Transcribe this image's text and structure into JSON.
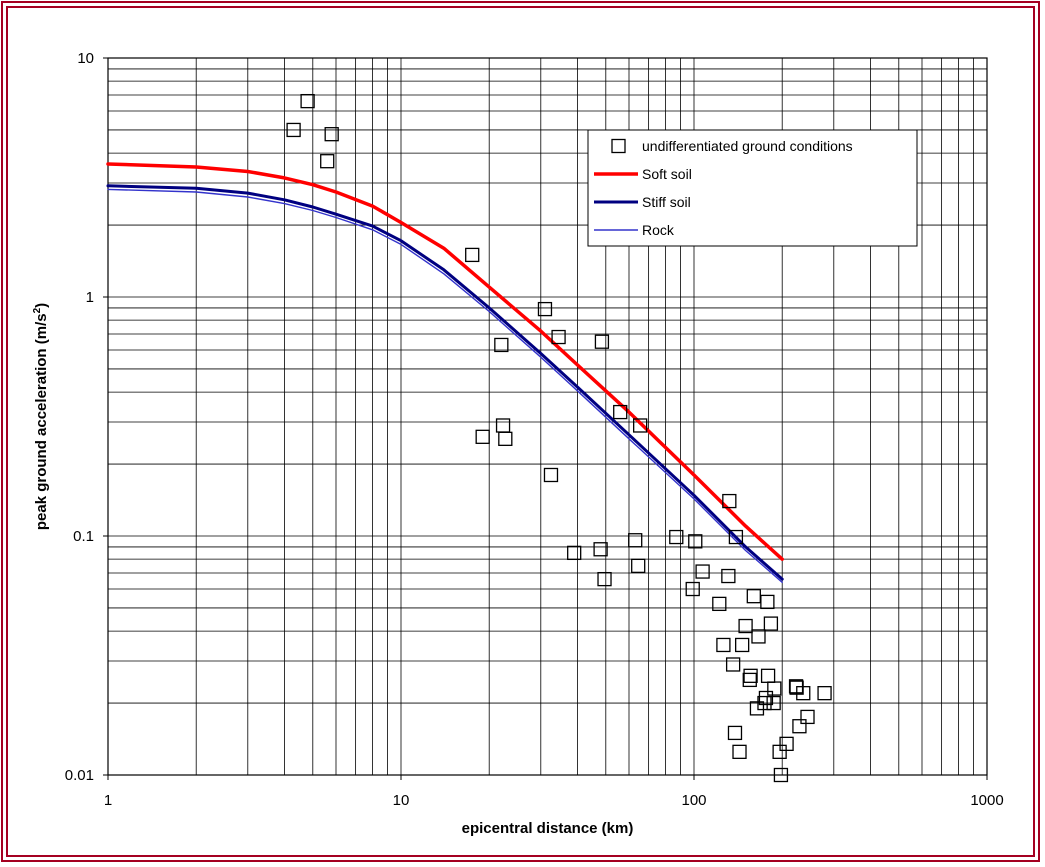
{
  "chart_data": {
    "type": "scatter",
    "title": "",
    "xlabel": "epicentral distance (km)",
    "ylabel_main": "peak ground acceleration (m/s",
    "ylabel_sup": "2",
    "ylabel_close": ")",
    "xscale": "log",
    "yscale": "log",
    "xlim": [
      1,
      1000
    ],
    "ylim": [
      0.01,
      10
    ],
    "x_tick_labels": [
      "1",
      "10",
      "100",
      "1000"
    ],
    "y_tick_labels": [
      "0.01",
      "0.1",
      "1",
      "10"
    ],
    "grid": true,
    "legend_position": "top-right",
    "series": [
      {
        "name": "undifferentiated ground conditions",
        "kind": "markers",
        "marker": "open-square",
        "color": "#000000",
        "points": [
          [
            4.3,
            5.0
          ],
          [
            4.8,
            6.6
          ],
          [
            5.6,
            3.7
          ],
          [
            5.8,
            4.8
          ],
          [
            17.5,
            1.5
          ],
          [
            19,
            0.26
          ],
          [
            22,
            0.63
          ],
          [
            22.3,
            0.29
          ],
          [
            22.7,
            0.255
          ],
          [
            31,
            0.89
          ],
          [
            32.5,
            0.18
          ],
          [
            34.5,
            0.68
          ],
          [
            39,
            0.085
          ],
          [
            48,
            0.088
          ],
          [
            48.5,
            0.65
          ],
          [
            49.5,
            0.066
          ],
          [
            56,
            0.33
          ],
          [
            63,
            0.096
          ],
          [
            64.5,
            0.075
          ],
          [
            65.5,
            0.29
          ],
          [
            87,
            0.099
          ],
          [
            99,
            0.06
          ],
          [
            101,
            0.095
          ],
          [
            107,
            0.071
          ],
          [
            122,
            0.052
          ],
          [
            126,
            0.035
          ],
          [
            131,
            0.068
          ],
          [
            132,
            0.14
          ],
          [
            136,
            0.029
          ],
          [
            138,
            0.015
          ],
          [
            139,
            0.099
          ],
          [
            143,
            0.0125
          ],
          [
            146,
            0.035
          ],
          [
            150,
            0.042
          ],
          [
            155,
            0.025
          ],
          [
            156,
            0.026
          ],
          [
            160,
            0.056
          ],
          [
            164,
            0.019
          ],
          [
            166,
            0.038
          ],
          [
            174,
            0.02
          ],
          [
            176,
            0.021
          ],
          [
            178,
            0.053
          ],
          [
            179,
            0.026
          ],
          [
            183,
            0.043
          ],
          [
            187,
            0.02
          ],
          [
            188,
            0.023
          ],
          [
            196,
            0.0125
          ],
          [
            198,
            0.01
          ],
          [
            207,
            0.0135
          ],
          [
            223,
            0.0235
          ],
          [
            224,
            0.0232
          ],
          [
            229,
            0.016
          ],
          [
            236,
            0.022
          ],
          [
            244,
            0.0175
          ],
          [
            279,
            0.022
          ]
        ]
      },
      {
        "name": "Soft soil",
        "kind": "line",
        "color": "#ff0000",
        "stroke_width": 3.5,
        "points": [
          [
            1,
            3.6
          ],
          [
            2,
            3.5
          ],
          [
            3,
            3.35
          ],
          [
            4,
            3.15
          ],
          [
            5,
            2.95
          ],
          [
            6,
            2.75
          ],
          [
            8,
            2.4
          ],
          [
            10,
            2.05
          ],
          [
            14,
            1.6
          ],
          [
            20,
            1.1
          ],
          [
            30,
            0.72
          ],
          [
            40,
            0.52
          ],
          [
            60,
            0.33
          ],
          [
            100,
            0.18
          ],
          [
            150,
            0.11
          ],
          [
            200,
            0.08
          ]
        ]
      },
      {
        "name": "Stiff soil",
        "kind": "line",
        "color": "#000080",
        "stroke_width": 3,
        "points": [
          [
            1,
            2.92
          ],
          [
            2,
            2.85
          ],
          [
            3,
            2.72
          ],
          [
            4,
            2.55
          ],
          [
            5,
            2.38
          ],
          [
            6,
            2.22
          ],
          [
            8,
            1.98
          ],
          [
            10,
            1.72
          ],
          [
            14,
            1.3
          ],
          [
            20,
            0.9
          ],
          [
            30,
            0.58
          ],
          [
            40,
            0.42
          ],
          [
            60,
            0.265
          ],
          [
            100,
            0.148
          ],
          [
            150,
            0.09
          ],
          [
            200,
            0.066
          ]
        ]
      },
      {
        "name": "Rock",
        "kind": "line",
        "color": "#3333cc",
        "stroke_width": 1.4,
        "points": [
          [
            1,
            2.82
          ],
          [
            2,
            2.75
          ],
          [
            3,
            2.62
          ],
          [
            4,
            2.46
          ],
          [
            5,
            2.3
          ],
          [
            6,
            2.15
          ],
          [
            8,
            1.91
          ],
          [
            10,
            1.66
          ],
          [
            14,
            1.25
          ],
          [
            20,
            0.87
          ],
          [
            30,
            0.56
          ],
          [
            40,
            0.405
          ],
          [
            60,
            0.255
          ],
          [
            100,
            0.143
          ],
          [
            150,
            0.087
          ],
          [
            200,
            0.064
          ]
        ]
      }
    ]
  }
}
